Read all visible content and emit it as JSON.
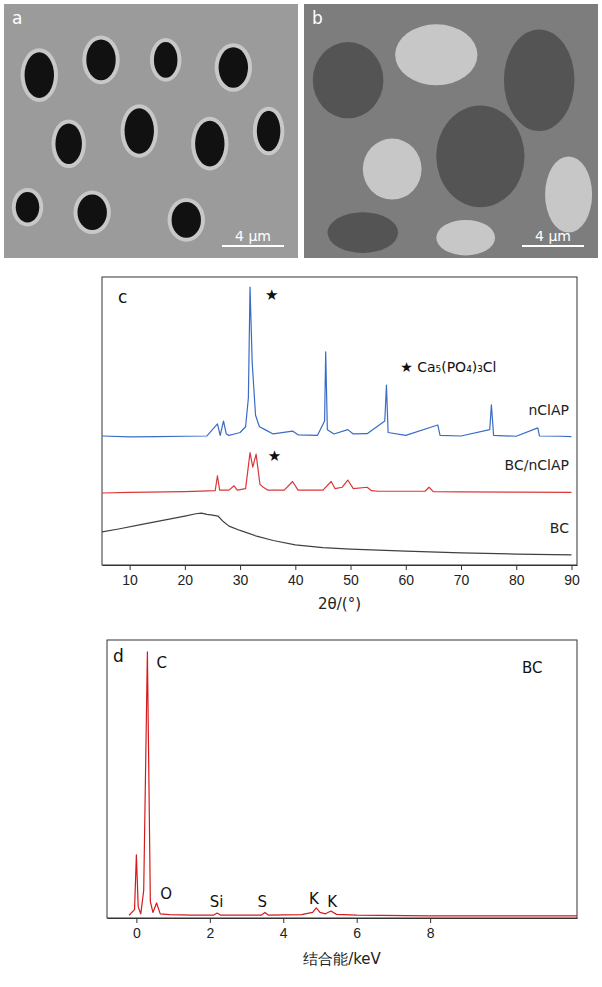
{
  "images": [
    {
      "panel_label": "a",
      "scale_bar": "4 μm"
    },
    {
      "panel_label": "b",
      "scale_bar": "4 μm"
    }
  ],
  "chart_data": [
    {
      "panel_label": "c",
      "type": "line",
      "x_label": "2θ/(°)",
      "xlim": [
        5,
        91
      ],
      "xticks": [
        10,
        20,
        30,
        40,
        50,
        60,
        70,
        80,
        90
      ],
      "ylim": [
        0,
        100
      ],
      "tick_labels": "x",
      "series": [
        {
          "name": "nClAP",
          "color": "#3a6cc6",
          "x": [
            5,
            10,
            15,
            20,
            24,
            25.9,
            26.4,
            27,
            27.5,
            28,
            29,
            30,
            31,
            31.5,
            31.8,
            32.2,
            32.8,
            33.5,
            34.5,
            36,
            39.5,
            40.5,
            44,
            45.3,
            45.5,
            45.8,
            47,
            49.5,
            50.5,
            53,
            56.2,
            56.5,
            56.8,
            60,
            65.8,
            66.2,
            70,
            75.2,
            75.5,
            75.9,
            80,
            83.9,
            84.2,
            88,
            90
          ],
          "values": [
            44.8,
            44.5,
            44.6,
            44.7,
            44.8,
            49,
            45,
            50,
            45.5,
            45,
            45.5,
            46,
            48,
            58,
            96.5,
            70,
            52,
            48,
            47,
            45.5,
            46.5,
            45.2,
            45,
            50,
            74,
            47,
            45.5,
            47,
            45.5,
            45.6,
            50,
            62.5,
            46,
            45,
            48.6,
            45,
            44.8,
            47,
            55.6,
            45,
            44.7,
            47.6,
            44.8,
            44.7,
            44.6
          ]
        },
        {
          "name": "BC/nClAP",
          "color": "#d9383a",
          "x": [
            5,
            10,
            20,
            25.5,
            25.9,
            26.3,
            28,
            28.9,
            29.5,
            31,
            31.8,
            32.3,
            32.9,
            33.6,
            34.2,
            35,
            38,
            39.5,
            40.5,
            45,
            46.5,
            47.2,
            48.5,
            49.5,
            50.5,
            53,
            53.8,
            55,
            63.5,
            64.2,
            65,
            70,
            80,
            90
          ],
          "values": [
            25,
            25.2,
            25.5,
            25.8,
            31,
            26,
            26,
            27.5,
            26,
            26.5,
            39,
            34,
            38.5,
            28,
            27,
            26,
            26,
            29,
            26,
            26,
            29,
            26.5,
            27,
            29.5,
            26.5,
            27,
            25.8,
            25.6,
            25.6,
            27,
            25.5,
            25.4,
            25.3,
            25.2
          ]
        },
        {
          "name": "BC",
          "color": "#404040",
          "x": [
            5,
            8,
            12,
            16,
            20,
            22,
            23,
            24,
            25,
            26,
            27,
            28,
            30,
            33,
            36,
            40,
            45,
            50,
            60,
            70,
            80,
            90
          ],
          "values": [
            11.5,
            12.5,
            14,
            15.5,
            17,
            17.8,
            18,
            17.6,
            17.3,
            17,
            15,
            13.5,
            12,
            10,
            8.5,
            7,
            6,
            5.5,
            4.8,
            4.2,
            3.8,
            3.5
          ]
        }
      ],
      "annotations": [
        {
          "text": "★",
          "x": 34.5,
          "y": 92
        },
        {
          "text": "★",
          "x": 35,
          "y": 36
        },
        {
          "text": "★ Ca₅(PO₄)₃Cl",
          "x": 59,
          "y": 67
        }
      ]
    },
    {
      "panel_label": "d",
      "type": "line",
      "x_label": "结合能/keV",
      "xlim": [
        -0.8,
        12
      ],
      "xticks": [
        0,
        2,
        4,
        6,
        8
      ],
      "ylim": [
        0,
        100
      ],
      "tick_labels": "x",
      "series": [
        {
          "color": "#d7191c",
          "x": [
            -0.2,
            -0.05,
            0,
            0.05,
            0.12,
            0.2,
            0.3,
            0.38,
            0.45,
            0.55,
            0.65,
            0.9,
            1.5,
            2.1,
            2.2,
            2.3,
            3.0,
            3.4,
            3.5,
            3.6,
            4.5,
            4.8,
            4.9,
            5.0,
            5.15,
            5.3,
            5.45,
            6,
            8,
            10,
            12
          ],
          "values": [
            1,
            3,
            22.7,
            4,
            1.5,
            10,
            95.7,
            6,
            2,
            5.4,
            1.5,
            1.2,
            1,
            1,
            1.8,
            1,
            1,
            1,
            2,
            1,
            1.2,
            2,
            3.6,
            2,
            1.5,
            2.5,
            1.3,
            1,
            0.8,
            0.8,
            0.8
          ]
        }
      ],
      "annotations": [
        {
          "text": "C",
          "x": 0.55,
          "y": 90
        },
        {
          "text": "O",
          "x": 0.65,
          "y": 7
        },
        {
          "text": "Si",
          "x": 2.0,
          "y": 4
        },
        {
          "text": "S",
          "x": 3.3,
          "y": 4
        },
        {
          "text": "K",
          "x": 4.7,
          "y": 5
        },
        {
          "text": "K",
          "x": 5.2,
          "y": 4
        },
        {
          "text": "BC",
          "x": 10.5,
          "y": 88
        }
      ]
    }
  ]
}
